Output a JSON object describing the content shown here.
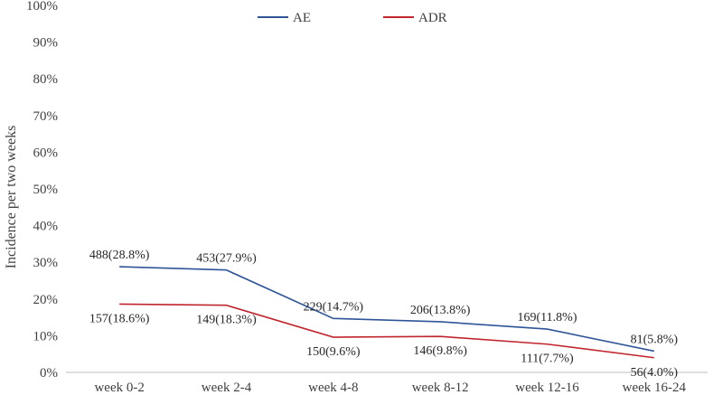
{
  "chart_data": {
    "type": "line",
    "title": "",
    "xlabel": "",
    "ylabel": "Incidence per two weeks",
    "ylim": [
      0,
      100
    ],
    "yticks": [
      "0%",
      "10%",
      "20%",
      "30%",
      "40%",
      "50%",
      "60%",
      "70%",
      "80%",
      "90%",
      "100%"
    ],
    "categories": [
      "week 0-2",
      "week 2-4",
      "week 4-8",
      "week 8-12",
      "week 12-16",
      "week 16-24"
    ],
    "grid": false,
    "legend_position": "top-center",
    "series": [
      {
        "name": "AE",
        "color": "#2e5597",
        "values": [
          28.8,
          27.9,
          14.7,
          13.8,
          11.8,
          5.8
        ],
        "labels": [
          "488(28.8%)",
          "453(27.9%)",
          "229(14.7%)",
          "206(13.8%)",
          "169(11.8%)",
          "81(5.8%)"
        ]
      },
      {
        "name": "ADR",
        "color": "#c0262d",
        "values": [
          18.6,
          18.3,
          9.6,
          9.8,
          7.7,
          4.0
        ],
        "labels": [
          "157(18.6%)",
          "149(18.3%)",
          "150(9.6%)",
          "146(9.8%)",
          "111(7.7%)",
          "56(4.0%)"
        ]
      }
    ]
  }
}
